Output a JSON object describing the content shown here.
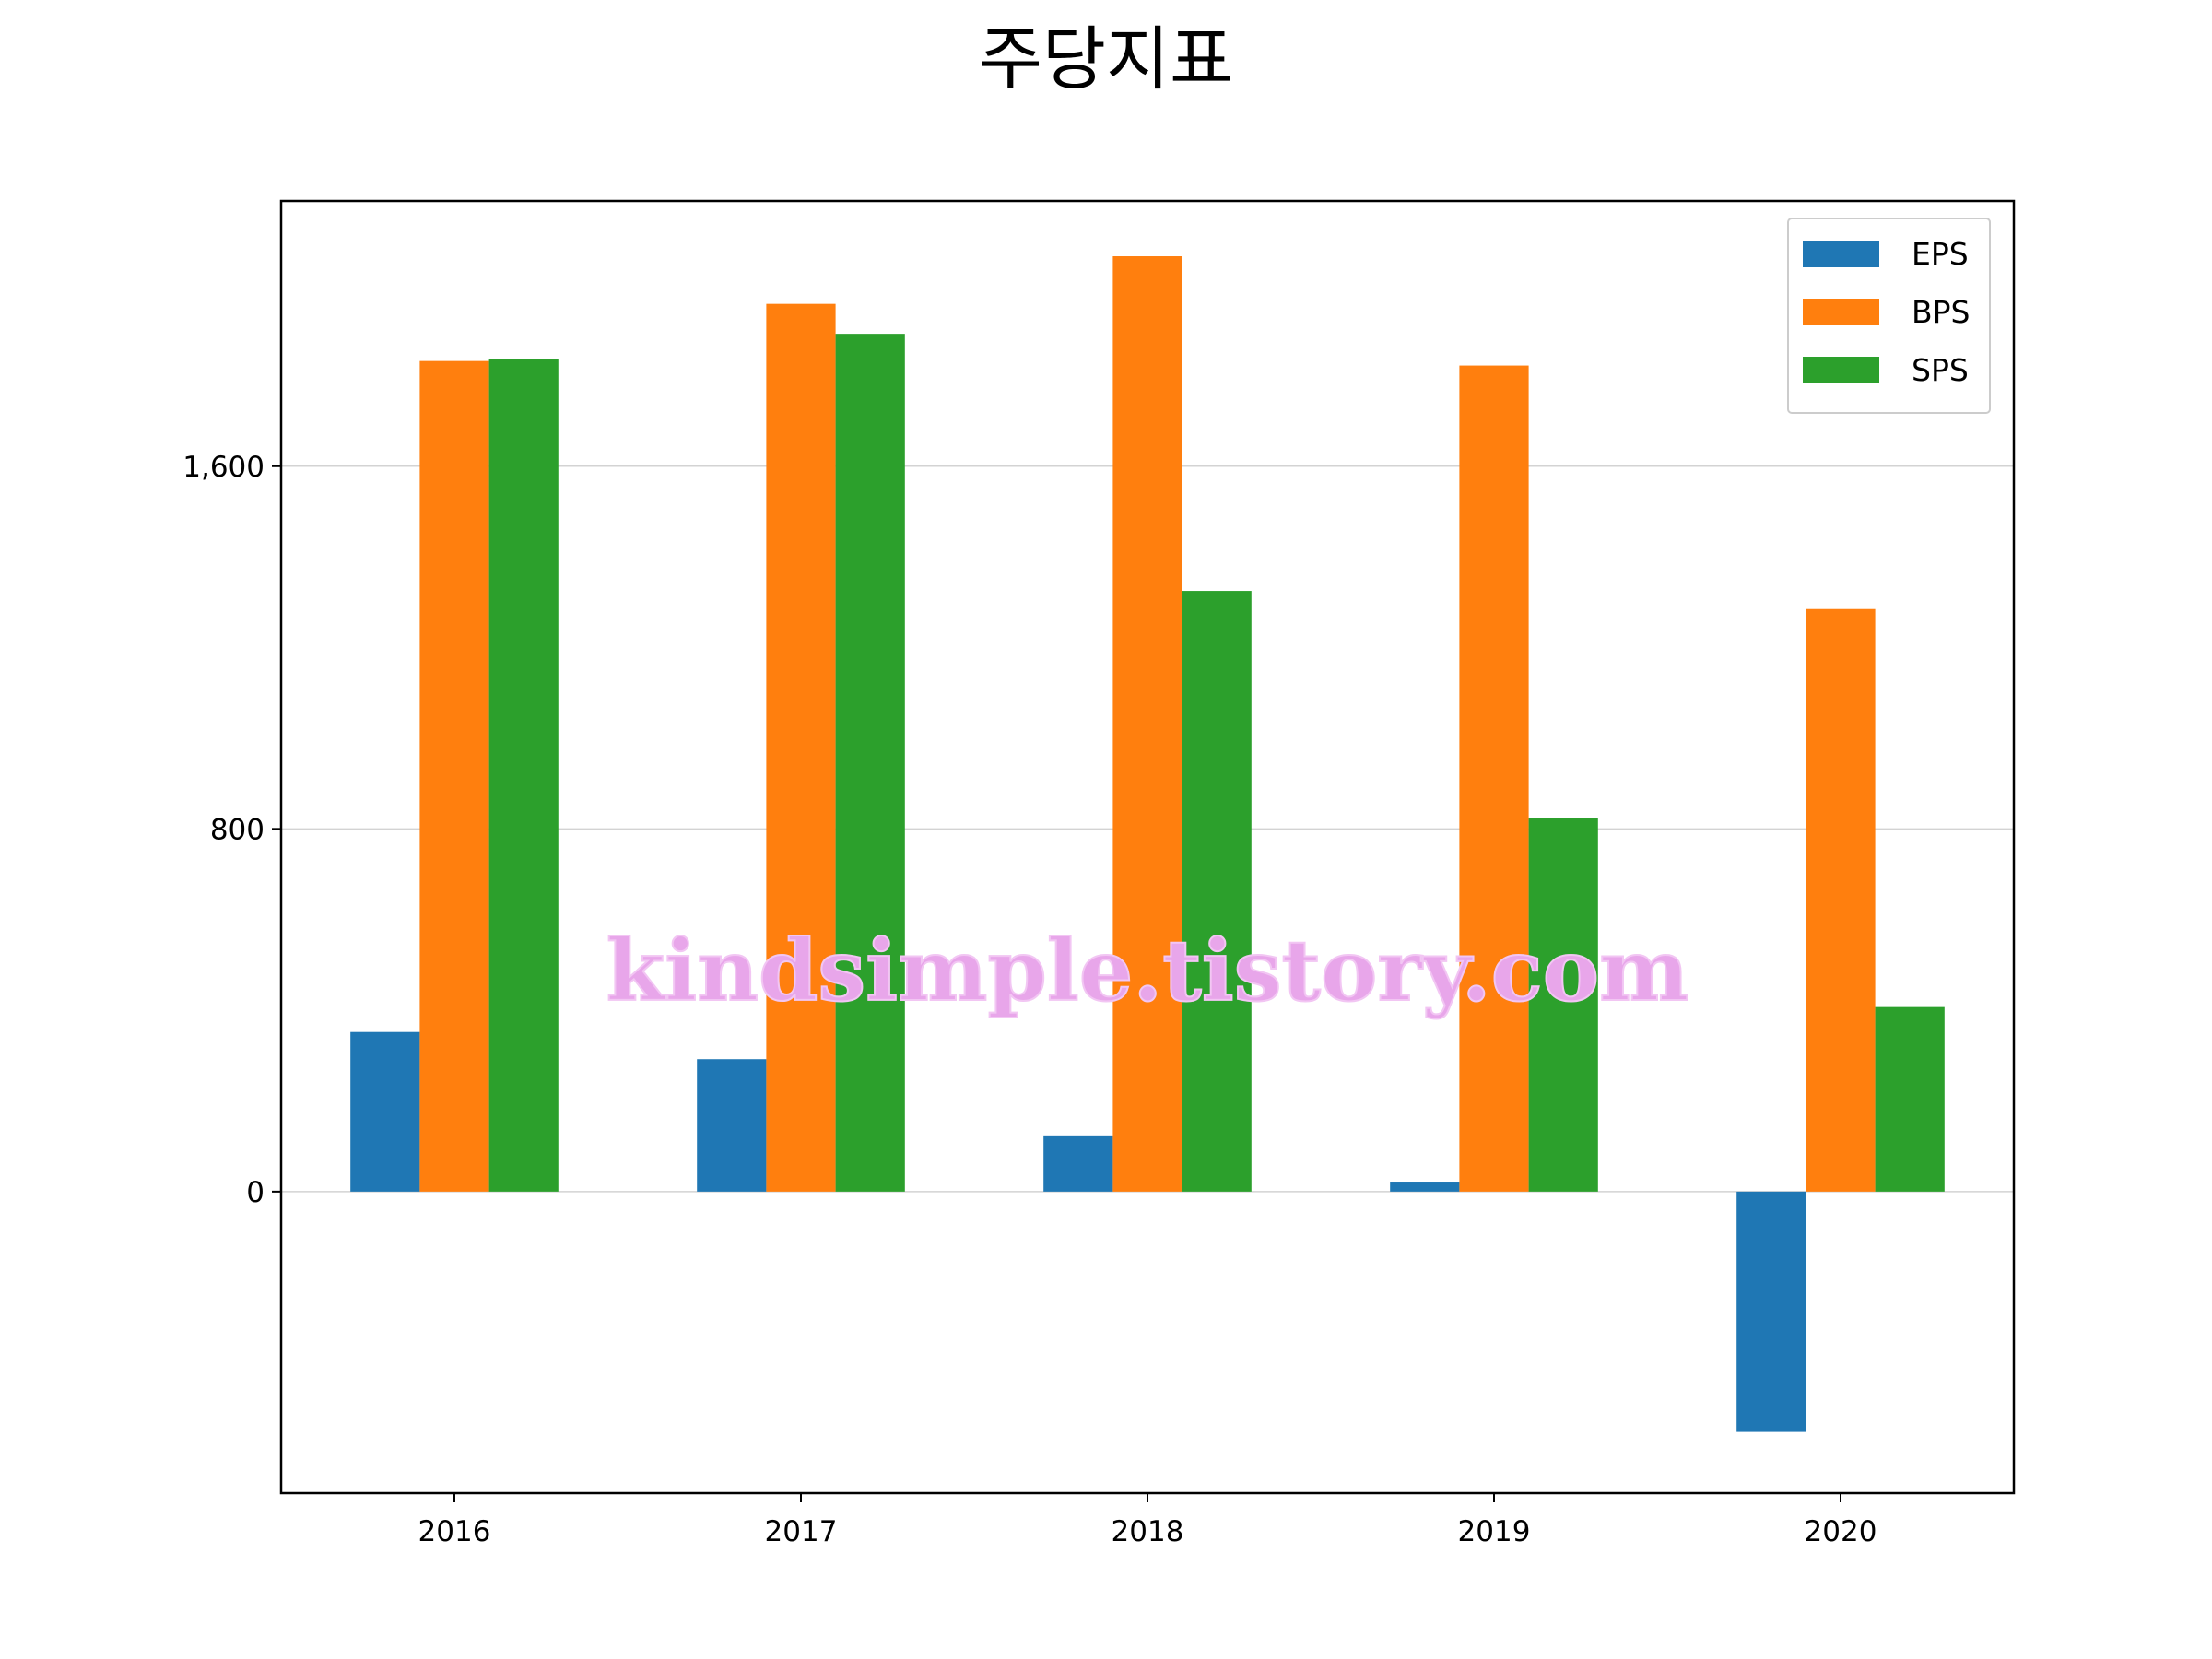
{
  "chart_data": {
    "type": "bar",
    "title": "주당지표",
    "xlabel": "",
    "ylabel": "",
    "categories": [
      "2016",
      "2017",
      "2018",
      "2019",
      "2020"
    ],
    "series": [
      {
        "name": "EPS",
        "color": "#1f77b4",
        "values": [
          352,
          292,
          122,
          20,
          -530
        ]
      },
      {
        "name": "BPS",
        "color": "#ff7f0e",
        "values": [
          1832,
          1958,
          2063,
          1822,
          1285
        ]
      },
      {
        "name": "SPS",
        "color": "#2ca02c",
        "values": [
          1836,
          1892,
          1325,
          823,
          407
        ]
      }
    ],
    "ylim": [
      -665,
      2185
    ],
    "yticks": [
      0,
      800,
      1600
    ],
    "ytick_labels": [
      "0",
      "800",
      "1,600"
    ],
    "grid": "horizontal",
    "legend_position": "top-right"
  },
  "watermark": "kindsimple.tistory.com"
}
